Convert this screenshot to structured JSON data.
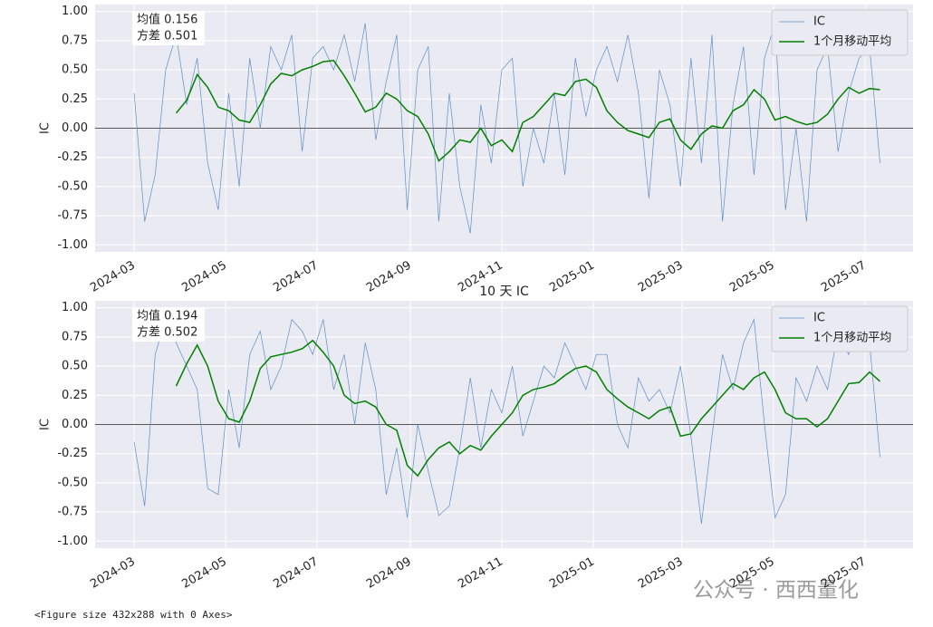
{
  "chart_data": [
    {
      "type": "line",
      "ylabel": "IC",
      "annotations": [
        "均值 0.156",
        "方差 0.501"
      ],
      "x": [
        "2024-03-01",
        "2024-03-08",
        "2024-03-15",
        "2024-03-22",
        "2024-03-29",
        "2024-04-05",
        "2024-04-12",
        "2024-04-19",
        "2024-04-26",
        "2024-05-03",
        "2024-05-10",
        "2024-05-17",
        "2024-05-24",
        "2024-05-31",
        "2024-06-07",
        "2024-06-14",
        "2024-06-21",
        "2024-06-28",
        "2024-07-05",
        "2024-07-12",
        "2024-07-19",
        "2024-07-26",
        "2024-08-02",
        "2024-08-09",
        "2024-08-16",
        "2024-08-23",
        "2024-08-30",
        "2024-09-06",
        "2024-09-13",
        "2024-09-20",
        "2024-09-27",
        "2024-10-04",
        "2024-10-11",
        "2024-10-18",
        "2024-10-25",
        "2024-11-01",
        "2024-11-08",
        "2024-11-15",
        "2024-11-22",
        "2024-11-29",
        "2024-12-06",
        "2024-12-13",
        "2024-12-20",
        "2024-12-27",
        "2025-01-03",
        "2025-01-10",
        "2025-01-17",
        "2025-01-24",
        "2025-01-31",
        "2025-02-07",
        "2025-02-14",
        "2025-02-21",
        "2025-02-28",
        "2025-03-07",
        "2025-03-14",
        "2025-03-21",
        "2025-03-28",
        "2025-04-04",
        "2025-04-11",
        "2025-04-18",
        "2025-04-25",
        "2025-05-02",
        "2025-05-09",
        "2025-05-16",
        "2025-05-23",
        "2025-05-30",
        "2025-06-06",
        "2025-06-13",
        "2025-06-20",
        "2025-06-27",
        "2025-07-04",
        "2025-07-11"
      ],
      "series": [
        {
          "name": "IC",
          "color": "#5b8fc7",
          "width": 0.7,
          "values": [
            0.3,
            -0.8,
            -0.4,
            0.5,
            0.8,
            0.2,
            0.6,
            -0.3,
            -0.7,
            0.3,
            -0.5,
            0.6,
            0.0,
            0.7,
            0.5,
            0.8,
            -0.2,
            0.6,
            0.7,
            0.5,
            0.8,
            0.4,
            0.9,
            -0.1,
            0.4,
            0.8,
            -0.7,
            0.5,
            0.7,
            -0.8,
            0.3,
            -0.5,
            -0.9,
            0.2,
            -0.3,
            0.5,
            0.6,
            -0.5,
            0.0,
            -0.3,
            0.3,
            -0.4,
            0.6,
            0.1,
            0.5,
            0.7,
            0.4,
            0.8,
            0.3,
            -0.6,
            0.5,
            0.2,
            -0.5,
            0.6,
            -0.3,
            0.8,
            -0.8,
            0.2,
            0.7,
            -0.4,
            0.6,
            0.9,
            -0.7,
            0.0,
            -0.8,
            0.5,
            0.7,
            -0.2,
            0.3,
            0.6,
            0.7,
            -0.3
          ]
        },
        {
          "name": "1个月移动平均",
          "color": "#008000",
          "width": 1.5,
          "values": [
            null,
            null,
            null,
            null,
            0.13,
            0.24,
            0.46,
            0.35,
            0.18,
            0.15,
            0.07,
            0.05,
            0.2,
            0.38,
            0.47,
            0.45,
            0.5,
            0.53,
            0.57,
            0.58,
            0.45,
            0.3,
            0.14,
            0.18,
            0.3,
            0.25,
            0.15,
            0.1,
            -0.05,
            -0.28,
            -0.2,
            -0.1,
            -0.12,
            0.0,
            -0.15,
            -0.1,
            -0.2,
            0.05,
            0.1,
            0.2,
            0.3,
            0.28,
            0.4,
            0.42,
            0.35,
            0.15,
            0.05,
            -0.02,
            -0.05,
            -0.08,
            0.05,
            0.08,
            -0.1,
            -0.18,
            -0.05,
            0.02,
            0.0,
            0.15,
            0.2,
            0.33,
            0.25,
            0.07,
            0.1,
            0.06,
            0.03,
            0.05,
            0.12,
            0.25,
            0.35,
            0.3,
            0.34,
            0.33
          ]
        }
      ],
      "xlim": [
        "2024-02-04",
        "2025-08-02"
      ],
      "xticks": [
        "2024-03",
        "2024-05",
        "2024-07",
        "2024-09",
        "2024-11",
        "2025-01",
        "2025-03",
        "2025-05",
        "2025-07"
      ],
      "ylim": [
        -1.06,
        1.06
      ],
      "yticks": [
        {
          "value": -1,
          "label": "-1.00"
        },
        {
          "value": -0.75,
          "label": "-0.75"
        },
        {
          "value": -0.5,
          "label": "-0.50"
        },
        {
          "value": -0.25,
          "label": "-0.25"
        },
        {
          "value": 0,
          "label": "0.00"
        },
        {
          "value": 0.25,
          "label": "0.25"
        },
        {
          "value": 0.5,
          "label": "0.50"
        },
        {
          "value": 0.75,
          "label": "0.75"
        },
        {
          "value": 1,
          "label": "1.00"
        }
      ],
      "hline": 0,
      "grid": true,
      "legend": "upper right"
    },
    {
      "type": "line",
      "title": "10 天 IC",
      "ylabel": "IC",
      "annotations": [
        "均值 0.194",
        "方差 0.502"
      ],
      "x": [
        "2024-03-01",
        "2024-03-08",
        "2024-03-15",
        "2024-03-22",
        "2024-03-29",
        "2024-04-05",
        "2024-04-12",
        "2024-04-19",
        "2024-04-26",
        "2024-05-03",
        "2024-05-10",
        "2024-05-17",
        "2024-05-24",
        "2024-05-31",
        "2024-06-07",
        "2024-06-14",
        "2024-06-21",
        "2024-06-28",
        "2024-07-05",
        "2024-07-12",
        "2024-07-19",
        "2024-07-26",
        "2024-08-02",
        "2024-08-09",
        "2024-08-16",
        "2024-08-23",
        "2024-08-30",
        "2024-09-06",
        "2024-09-13",
        "2024-09-20",
        "2024-09-27",
        "2024-10-04",
        "2024-10-11",
        "2024-10-18",
        "2024-10-25",
        "2024-11-01",
        "2024-11-08",
        "2024-11-15",
        "2024-11-22",
        "2024-11-29",
        "2024-12-06",
        "2024-12-13",
        "2024-12-20",
        "2024-12-27",
        "2025-01-03",
        "2025-01-10",
        "2025-01-17",
        "2025-01-24",
        "2025-01-31",
        "2025-02-07",
        "2025-02-14",
        "2025-02-21",
        "2025-02-28",
        "2025-03-07",
        "2025-03-14",
        "2025-03-21",
        "2025-03-28",
        "2025-04-04",
        "2025-04-11",
        "2025-04-18",
        "2025-04-25",
        "2025-05-02",
        "2025-05-09",
        "2025-05-16",
        "2025-05-23",
        "2025-05-30",
        "2025-06-06",
        "2025-06-13",
        "2025-06-20",
        "2025-06-27",
        "2025-07-04",
        "2025-07-11"
      ],
      "series": [
        {
          "name": "IC",
          "color": "#5b8fc7",
          "width": 0.7,
          "values": [
            -0.15,
            -0.7,
            0.6,
            0.9,
            0.7,
            0.5,
            0.3,
            -0.55,
            -0.6,
            0.3,
            -0.2,
            0.6,
            0.8,
            0.3,
            0.5,
            0.9,
            0.8,
            0.6,
            0.9,
            0.3,
            0.6,
            0.0,
            0.7,
            0.3,
            -0.6,
            -0.2,
            -0.8,
            0.0,
            -0.4,
            -0.78,
            -0.7,
            -0.2,
            0.4,
            -0.2,
            0.3,
            0.1,
            0.5,
            -0.1,
            0.2,
            0.5,
            0.4,
            0.7,
            0.5,
            0.3,
            0.6,
            0.6,
            0.0,
            -0.2,
            0.4,
            0.2,
            0.3,
            0.1,
            0.5,
            -0.1,
            -0.85,
            -0.1,
            0.6,
            0.3,
            0.7,
            0.9,
            0.0,
            -0.8,
            -0.6,
            0.4,
            0.2,
            0.5,
            0.3,
            0.8,
            0.6,
            0.9,
            0.7,
            -0.28
          ]
        },
        {
          "name": "1个月移动平均",
          "color": "#008000",
          "width": 1.5,
          "values": [
            null,
            null,
            null,
            null,
            0.33,
            0.52,
            0.68,
            0.5,
            0.2,
            0.05,
            0.02,
            0.2,
            0.48,
            0.58,
            0.6,
            0.62,
            0.65,
            0.72,
            0.62,
            0.5,
            0.25,
            0.18,
            0.2,
            0.15,
            0.0,
            -0.05,
            -0.35,
            -0.44,
            -0.3,
            -0.2,
            -0.15,
            -0.25,
            -0.18,
            -0.22,
            -0.1,
            0.0,
            0.1,
            0.25,
            0.3,
            0.32,
            0.35,
            0.42,
            0.48,
            0.5,
            0.45,
            0.3,
            0.22,
            0.15,
            0.1,
            0.05,
            0.12,
            0.15,
            -0.1,
            -0.08,
            0.05,
            0.15,
            0.25,
            0.35,
            0.3,
            0.4,
            0.45,
            0.3,
            0.1,
            0.05,
            0.05,
            -0.02,
            0.05,
            0.2,
            0.35,
            0.36,
            0.45,
            0.37
          ]
        }
      ],
      "xlim": [
        "2024-02-04",
        "2025-08-02"
      ],
      "xticks": [
        "2024-03",
        "2024-05",
        "2024-07",
        "2024-09",
        "2024-11",
        "2025-01",
        "2025-03",
        "2025-05",
        "2025-07"
      ],
      "ylim": [
        -1.06,
        1.06
      ],
      "yticks": [
        {
          "value": -1,
          "label": "-1.00"
        },
        {
          "value": -0.75,
          "label": "-0.75"
        },
        {
          "value": -0.5,
          "label": "-0.50"
        },
        {
          "value": -0.25,
          "label": "-0.25"
        },
        {
          "value": 0,
          "label": "0.00"
        },
        {
          "value": 0.25,
          "label": "0.25"
        },
        {
          "value": 0.5,
          "label": "0.50"
        },
        {
          "value": 0.75,
          "label": "0.75"
        },
        {
          "value": 1,
          "label": "1.00"
        }
      ],
      "hline": 0,
      "grid": true,
      "legend": "upper right"
    }
  ],
  "footer": "<Figure size 432x288 with 0 Axes>",
  "watermark": "公众号 · 西西量化"
}
